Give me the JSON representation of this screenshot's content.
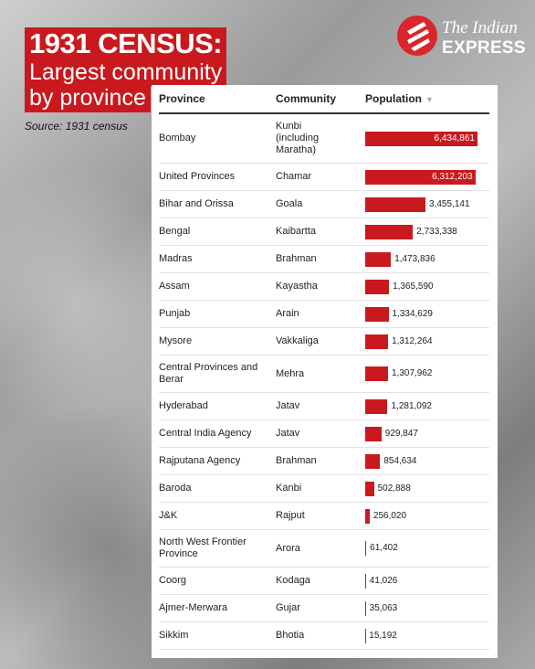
{
  "chart_data": {
    "type": "bar",
    "title": [
      "1931 CENSUS:",
      "Largest community",
      "by province"
    ],
    "source": "Source: 1931 census",
    "logo": [
      "The Indian",
      "EXPRESS"
    ],
    "columns": [
      "Province",
      "Community",
      "Population"
    ],
    "color": "#c9191e",
    "categories": [
      "Bombay",
      "United Provinces",
      "Bihar and Orissa",
      "Bengal",
      "Madras",
      "Assam",
      "Punjab",
      "Mysore",
      "Central Provinces and Berar",
      "Hyderabad",
      "Central India Agency",
      "Rajputana Agency",
      "Baroda",
      "J&K",
      "North West Frontier Province",
      "Coorg",
      "Ajmer-Merwara",
      "Sikkim"
    ],
    "community": [
      "Kunbi (including Maratha)",
      "Chamar",
      "Goala",
      "Kaibartta",
      "Brahman",
      "Kayastha",
      "Arain",
      "Vakkaliga",
      "Mehra",
      "Jatav",
      "Jatav",
      "Brahman",
      "Kanbi",
      "Rajput",
      "Arora",
      "Kodaga",
      "Gujar",
      "Bhotia"
    ],
    "values": [
      6434861,
      6312203,
      3455141,
      2733338,
      1473836,
      1365590,
      1334629,
      1312264,
      1307962,
      1281092,
      929847,
      854634,
      502888,
      256020,
      61402,
      41026,
      35063,
      15192
    ],
    "value_labels": [
      "6,434,861",
      "6,312,203",
      "3,455,141",
      "2,733,338",
      "1,473,836",
      "1,365,590",
      "1,334,629",
      "1,312,264",
      "1,307,962",
      "1,281,092",
      "929,847",
      "854,634",
      "502,888",
      "256,020",
      "61,402",
      "41,026",
      "35,063",
      "15,192"
    ]
  }
}
